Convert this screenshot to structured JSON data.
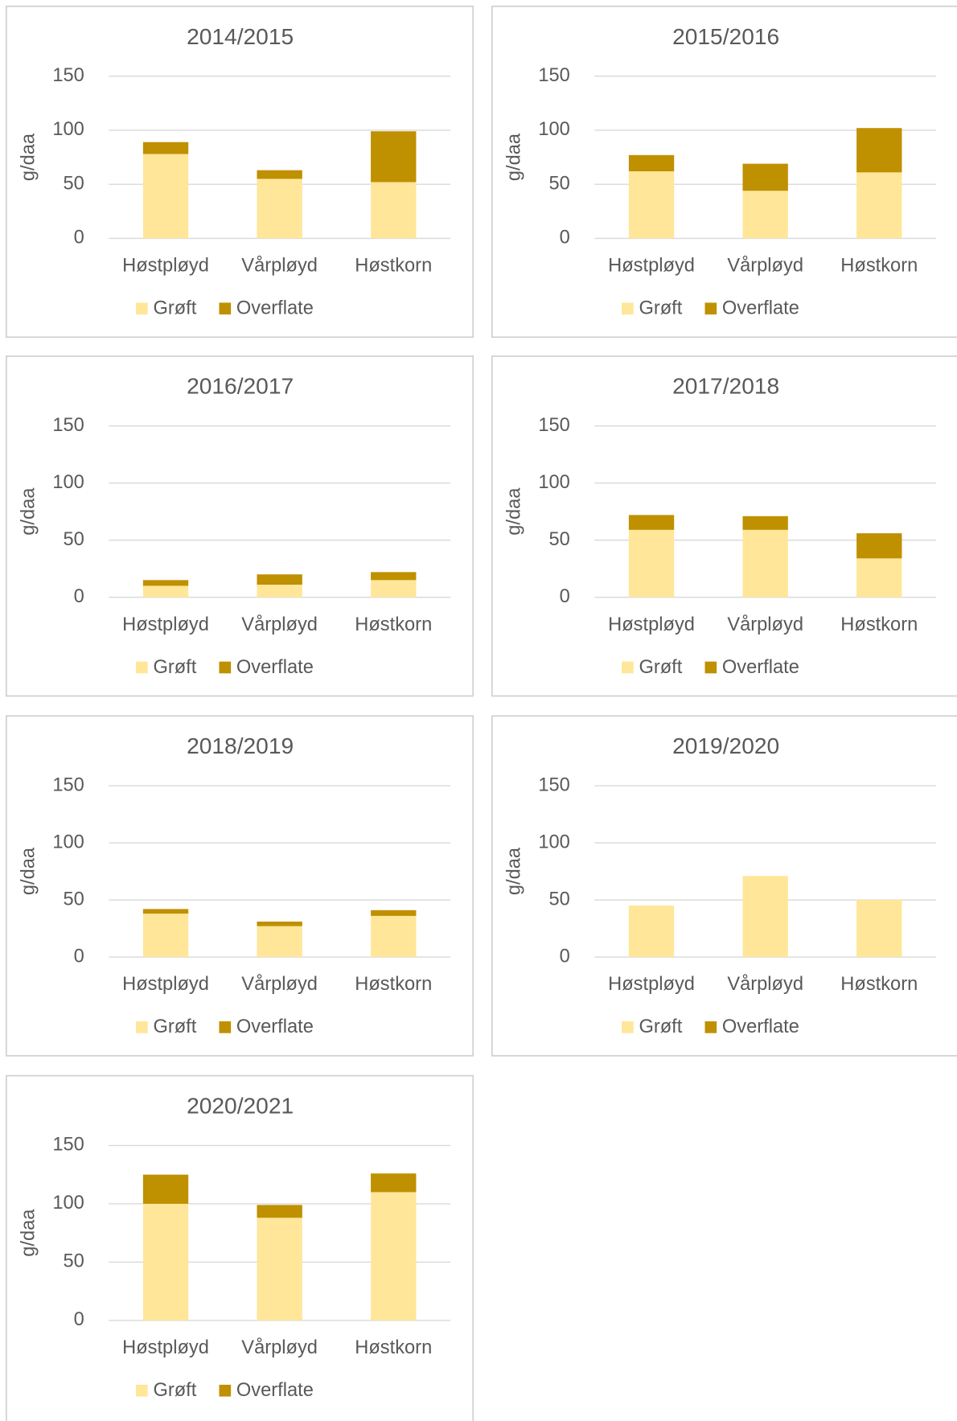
{
  "chart_data": [
    {
      "type": "stacked_bar",
      "title": "2014/2015",
      "y_label": "g/daa",
      "categories": [
        "Høstpløyd",
        "Vårpløyd",
        "Høstkorn"
      ],
      "series": [
        {
          "name": "Grøft",
          "color": "#FFE699",
          "values": [
            78,
            55,
            52
          ]
        },
        {
          "name": "Overflate",
          "color": "#BF9000",
          "values": [
            11,
            8,
            47
          ]
        }
      ],
      "ylim": [
        0,
        150
      ],
      "yticks": [
        0,
        50,
        100,
        150
      ],
      "grid": true,
      "legend": "bottom"
    },
    {
      "type": "stacked_bar",
      "title": "2015/2016",
      "y_label": "g/daa",
      "categories": [
        "Høstpløyd",
        "Vårpløyd",
        "Høstkorn"
      ],
      "series": [
        {
          "name": "Grøft",
          "color": "#FFE699",
          "values": [
            62,
            44,
            61
          ]
        },
        {
          "name": "Overflate",
          "color": "#BF9000",
          "values": [
            15,
            25,
            41
          ]
        }
      ],
      "ylim": [
        0,
        150
      ],
      "yticks": [
        0,
        50,
        100,
        150
      ],
      "grid": true,
      "legend": "bottom"
    },
    {
      "type": "stacked_bar",
      "title": "2016/2017",
      "y_label": "g/daa",
      "categories": [
        "Høstpløyd",
        "Vårpløyd",
        "Høstkorn"
      ],
      "series": [
        {
          "name": "Grøft",
          "color": "#FFE699",
          "values": [
            10,
            11,
            15
          ]
        },
        {
          "name": "Overflate",
          "color": "#BF9000",
          "values": [
            5,
            9,
            7
          ]
        }
      ],
      "ylim": [
        0,
        150
      ],
      "yticks": [
        0,
        50,
        100,
        150
      ],
      "grid": true,
      "legend": "bottom"
    },
    {
      "type": "stacked_bar",
      "title": "2017/2018",
      "y_label": "g/daa",
      "categories": [
        "Høstpløyd",
        "Vårpløyd",
        "Høstkorn"
      ],
      "series": [
        {
          "name": "Grøft",
          "color": "#FFE699",
          "values": [
            59,
            59,
            34
          ]
        },
        {
          "name": "Overflate",
          "color": "#BF9000",
          "values": [
            13,
            12,
            22
          ]
        }
      ],
      "ylim": [
        0,
        150
      ],
      "yticks": [
        0,
        50,
        100,
        150
      ],
      "grid": true,
      "legend": "bottom"
    },
    {
      "type": "stacked_bar",
      "title": "2018/2019",
      "y_label": "g/daa",
      "categories": [
        "Høstpløyd",
        "Vårpløyd",
        "Høstkorn"
      ],
      "series": [
        {
          "name": "Grøft",
          "color": "#FFE699",
          "values": [
            38,
            27,
            36
          ]
        },
        {
          "name": "Overflate",
          "color": "#BF9000",
          "values": [
            4,
            4,
            5
          ]
        }
      ],
      "ylim": [
        0,
        150
      ],
      "yticks": [
        0,
        50,
        100,
        150
      ],
      "grid": true,
      "legend": "bottom"
    },
    {
      "type": "stacked_bar",
      "title": "2019/2020",
      "y_label": "g/daa",
      "categories": [
        "Høstpløyd",
        "Vårpløyd",
        "Høstkorn"
      ],
      "series": [
        {
          "name": "Grøft",
          "color": "#FFE699",
          "values": [
            45,
            71,
            50
          ]
        },
        {
          "name": "Overflate",
          "color": "#BF9000",
          "values": [
            0,
            0,
            0
          ]
        }
      ],
      "ylim": [
        0,
        150
      ],
      "yticks": [
        0,
        50,
        100,
        150
      ],
      "grid": true,
      "legend": "bottom"
    },
    {
      "type": "stacked_bar",
      "title": "2020/2021",
      "y_label": "g/daa",
      "categories": [
        "Høstpløyd",
        "Vårpløyd",
        "Høstkorn"
      ],
      "series": [
        {
          "name": "Grøft",
          "color": "#FFE699",
          "values": [
            100,
            88,
            110
          ]
        },
        {
          "name": "Overflate",
          "color": "#BF9000",
          "values": [
            25,
            11,
            16
          ]
        }
      ],
      "ylim": [
        0,
        150
      ],
      "yticks": [
        0,
        50,
        100,
        150
      ],
      "grid": true,
      "legend": "bottom"
    }
  ]
}
